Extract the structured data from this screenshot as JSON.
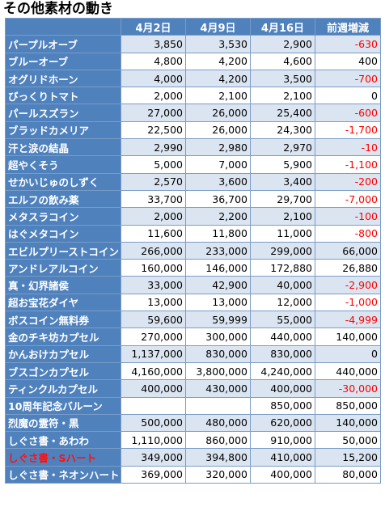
{
  "title": "その他素材の動き",
  "headers": [
    "",
    "4月2日",
    "4月9日",
    "4月16日",
    "前週増減"
  ],
  "rows": [
    {
      "name": "パープルオーブ",
      "v1": "3,850",
      "v2": "3,530",
      "v3": "2,900",
      "diff": "-630",
      "neg": true
    },
    {
      "name": "ブルーオーブ",
      "v1": "4,800",
      "v2": "4,200",
      "v3": "4,600",
      "diff": "400",
      "neg": false
    },
    {
      "name": "オグリドホーン",
      "v1": "4,000",
      "v2": "4,200",
      "v3": "3,500",
      "diff": "-700",
      "neg": true
    },
    {
      "name": "びっくりトマト",
      "v1": "2,000",
      "v2": "2,100",
      "v3": "2,100",
      "diff": "0",
      "neg": false
    },
    {
      "name": "パールスズラン",
      "v1": "27,000",
      "v2": "26,000",
      "v3": "25,400",
      "diff": "-600",
      "neg": true
    },
    {
      "name": "ブラッドカメリア",
      "v1": "22,500",
      "v2": "26,000",
      "v3": "24,300",
      "diff": "-1,700",
      "neg": true
    },
    {
      "name": "汗と涙の結晶",
      "v1": "2,990",
      "v2": "2,980",
      "v3": "2,970",
      "diff": "-10",
      "neg": true
    },
    {
      "name": "超やくそう",
      "v1": "5,000",
      "v2": "7,000",
      "v3": "5,900",
      "diff": "-1,100",
      "neg": true
    },
    {
      "name": "せかいじゅのしずく",
      "v1": "2,570",
      "v2": "3,600",
      "v3": "3,400",
      "diff": "-200",
      "neg": true
    },
    {
      "name": "エルフの飲み薬",
      "v1": "33,700",
      "v2": "36,700",
      "v3": "29,700",
      "diff": "-7,000",
      "neg": true
    },
    {
      "name": "メタスラコイン",
      "v1": "2,000",
      "v2": "2,200",
      "v3": "2,100",
      "diff": "-100",
      "neg": true
    },
    {
      "name": "はぐメタコイン",
      "v1": "11,600",
      "v2": "11,800",
      "v3": "11,000",
      "diff": "-800",
      "neg": true
    },
    {
      "name": "エビルプリーストコイン",
      "v1": "266,000",
      "v2": "233,000",
      "v3": "299,000",
      "diff": "66,000",
      "neg": false
    },
    {
      "name": "アンドレアルコイン",
      "v1": "160,000",
      "v2": "146,000",
      "v3": "172,880",
      "diff": "26,880",
      "neg": false
    },
    {
      "name": "真・幻界諸侯",
      "v1": "33,000",
      "v2": "42,900",
      "v3": "40,000",
      "diff": "-2,900",
      "neg": true
    },
    {
      "name": "超お宝花ダイヤ",
      "v1": "13,000",
      "v2": "13,000",
      "v3": "12,000",
      "diff": "-1,000",
      "neg": true
    },
    {
      "name": "ボスコイン無料券",
      "v1": "59,600",
      "v2": "59,999",
      "v3": "55,000",
      "diff": "-4,999",
      "neg": true
    },
    {
      "name": "金のチキ坊カプセル",
      "v1": "270,000",
      "v2": "300,000",
      "v3": "440,000",
      "diff": "140,000",
      "neg": false
    },
    {
      "name": "かんおけカプセル",
      "v1": "1,137,000",
      "v2": "830,000",
      "v3": "830,000",
      "diff": "0",
      "neg": false
    },
    {
      "name": "ブスゴンカプセル",
      "v1": "4,160,000",
      "v2": "3,800,000",
      "v3": "4,240,000",
      "diff": "440,000",
      "neg": false
    },
    {
      "name": "ティンクルカプセル",
      "v1": "400,000",
      "v2": "430,000",
      "v3": "400,000",
      "diff": "-30,000",
      "neg": true
    },
    {
      "name": "10周年記念バルーン",
      "v1": "",
      "v2": "",
      "v3": "850,000",
      "diff": "850,000",
      "neg": false
    },
    {
      "name": "烈魔の霊符・黒",
      "v1": "500,000",
      "v2": "480,000",
      "v3": "620,000",
      "diff": "140,000",
      "neg": false
    },
    {
      "name": "しぐさ書・あわわ",
      "v1": "1,110,000",
      "v2": "860,000",
      "v3": "910,000",
      "diff": "50,000",
      "neg": false
    },
    {
      "name": "しぐさ書・Sハート",
      "v1": "349,000",
      "v2": "394,800",
      "v3": "410,000",
      "diff": "15,200",
      "neg": false,
      "name_red": true
    },
    {
      "name": "しぐさ書・ネオンハート",
      "v1": "369,000",
      "v2": "320,000",
      "v3": "400,000",
      "diff": "80,000",
      "neg": false
    }
  ]
}
